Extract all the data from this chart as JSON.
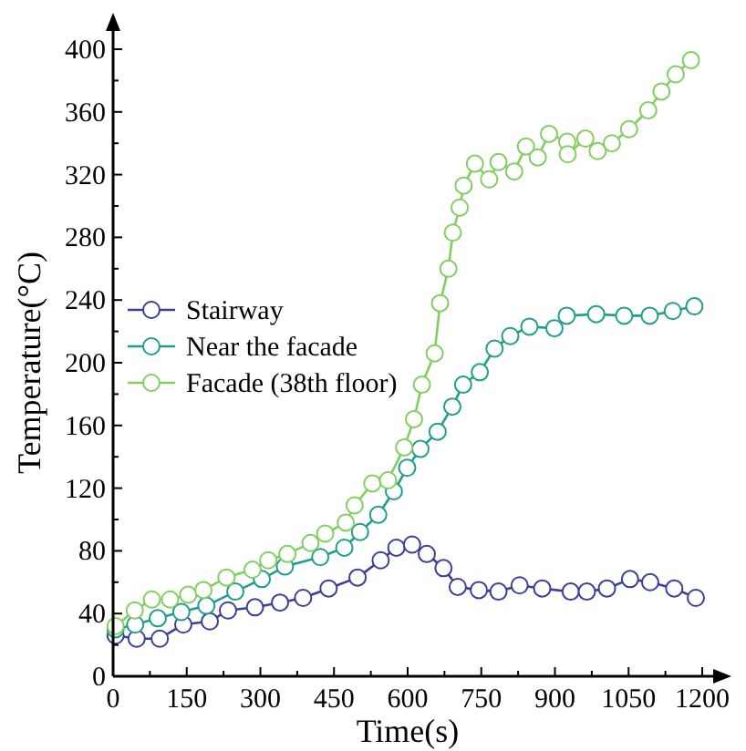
{
  "chart_data": {
    "type": "line",
    "xlabel": "Time(s)",
    "ylabel": "Temperature(°C)",
    "xlim": [
      0,
      1200
    ],
    "ylim": [
      0,
      400
    ],
    "xticks": [
      0,
      150,
      300,
      450,
      600,
      750,
      900,
      1050,
      1200
    ],
    "yticks": [
      0,
      40,
      80,
      120,
      160,
      200,
      240,
      280,
      320,
      360,
      400
    ],
    "marker": "circle",
    "line_style": "solid",
    "legend": "left",
    "grid": false,
    "series": [
      {
        "name": "Stairway",
        "color": "#3b3f98",
        "x": [
          5,
          48,
          95,
          143,
          197,
          234,
          289,
          340,
          387,
          439,
          498,
          545,
          577,
          609,
          639,
          673,
          702,
          745,
          785,
          828,
          874,
          932,
          965,
          1006,
          1053,
          1094,
          1143,
          1187
        ],
        "values": [
          26,
          24,
          24,
          33,
          35,
          42,
          44,
          47,
          50,
          56,
          63,
          74,
          82,
          84,
          78,
          69,
          57,
          55,
          54,
          58,
          56,
          54,
          54,
          56,
          62,
          60,
          56,
          50
        ]
      },
      {
        "name": "Near the facade",
        "color": "#1f9e8e",
        "x": [
          5,
          45,
          91,
          139,
          190,
          249,
          303,
          350,
          422,
          471,
          503,
          540,
          572,
          599,
          626,
          661,
          691,
          713,
          747,
          777,
          809,
          848,
          899,
          924,
          984,
          1041,
          1093,
          1140,
          1184
        ],
        "values": [
          30,
          33,
          37,
          41,
          45,
          54,
          62,
          70,
          76,
          82,
          92,
          103,
          118,
          133,
          145,
          156,
          172,
          186,
          194,
          209,
          217,
          223,
          222,
          230,
          231,
          230,
          230,
          233,
          236
        ]
      },
      {
        "name": "Facade (38th floor)",
        "color": "#80cf60",
        "x": [
          5,
          44,
          79,
          116,
          153,
          184,
          231,
          284,
          316,
          355,
          402,
          432,
          474,
          492,
          528,
          560,
          593,
          613,
          629,
          655,
          666,
          683,
          692,
          706,
          714,
          737,
          766,
          785,
          817,
          841,
          865,
          888,
          925,
          926,
          962,
          987,
          1016,
          1051,
          1090,
          1117,
          1146,
          1177
        ],
        "values": [
          32,
          42,
          49,
          49,
          52,
          55,
          63,
          68,
          74,
          78,
          85,
          91,
          98,
          109,
          123,
          125,
          146,
          164,
          186,
          206,
          238,
          260,
          283,
          299,
          313,
          327,
          317,
          328,
          322,
          338,
          331,
          346,
          341,
          333,
          343,
          335,
          340,
          349,
          361,
          373,
          384,
          393
        ]
      }
    ]
  }
}
